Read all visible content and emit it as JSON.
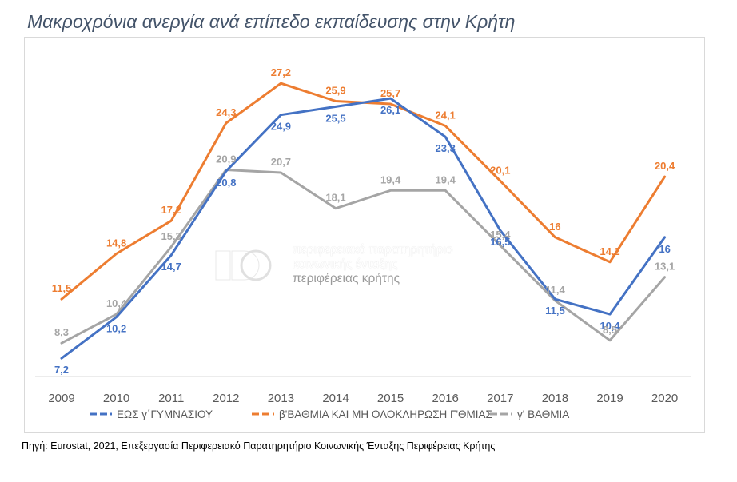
{
  "title": "Μακροχρόνια ανεργία ανά επίπεδο εκπαίδευσης στην Κρήτη",
  "source": "Πηγή: Eurostat,  2021, Επεξεργασία Περιφερειακό Παρατηρητήριο Κοινωνικής Ένταξης Περιφέρειας Κρήτης",
  "watermark": {
    "line1": "περιφερειακό παρατηρητήριο",
    "line2": "κοινωνικής ένταξης",
    "line3": "περιφέρειας κρήτης"
  },
  "chart_data": {
    "type": "line",
    "categories": [
      "2009",
      "2010",
      "2011",
      "2012",
      "2013",
      "2014",
      "2015",
      "2016",
      "2017",
      "2018",
      "2019",
      "2020"
    ],
    "series": [
      {
        "name": "ΕΩΣ γ΄ΓΥΜΝΑΣΙΟΥ",
        "color": "#4472C4",
        "values": [
          7.2,
          10.2,
          14.7,
          20.8,
          24.9,
          25.5,
          26.1,
          23.3,
          16.5,
          11.5,
          10.4,
          16
        ],
        "labels": [
          "7,2",
          "10,2",
          "14,7",
          "20,8",
          "24,9",
          "25,5",
          "26,1",
          "23,3",
          "16,5",
          "11,5",
          "10,4",
          "16"
        ]
      },
      {
        "name": "β'ΒΑΘΜΙΑ ΚΑΙ ΜΗ ΟΛΟΚΛΗΡΩΣΗ Γ'ΘΜΙΑΣ",
        "color": "#ED7D31",
        "values": [
          11.5,
          14.8,
          17.2,
          24.3,
          27.2,
          25.9,
          25.7,
          24.1,
          20.1,
          16,
          14.2,
          20.4
        ],
        "labels": [
          "11,5",
          "14,8",
          "17,2",
          "24,3",
          "27,2",
          "25,9",
          "25,7",
          "24,1",
          "20,1",
          "16",
          "14,2",
          "20,4"
        ]
      },
      {
        "name": "γ' ΒΑΘΜΙΑ",
        "color": "#A5A5A5",
        "values": [
          8.3,
          10.4,
          15.3,
          20.9,
          20.7,
          18.1,
          19.4,
          19.4,
          15.4,
          11.4,
          8.5,
          13.1
        ],
        "labels": [
          "8,3",
          "10,4",
          "15,3",
          "20,9",
          "20,7",
          "18,1",
          "19,4",
          "19,4",
          "15,4",
          "11,4",
          "8,5",
          "13,1"
        ]
      }
    ],
    "ylim": [
      0,
      30
    ],
    "grid": false,
    "legend": "bottom",
    "label_color": "#ED7D31"
  }
}
